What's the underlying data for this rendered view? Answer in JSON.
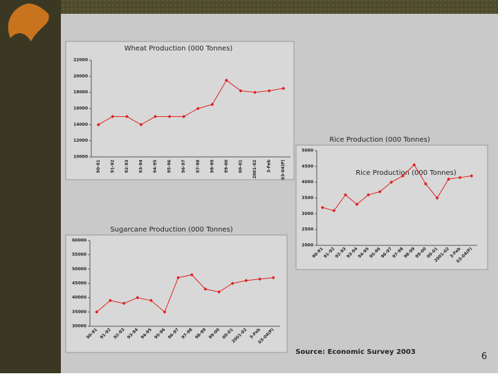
{
  "chart_data": [
    {
      "type": "line",
      "title": "Wheat Production (000 Tonnes)",
      "categories": [
        "90-91",
        "91-92",
        "92-93",
        "93-94",
        "94-95",
        "95-96",
        "96-97",
        "97-98",
        "98-99",
        "99-00",
        "00-01",
        "2001-02",
        "3-Feb",
        "03-04(P)"
      ],
      "series": [
        {
          "color": "#e02020",
          "values": [
            14000,
            15000,
            15000,
            14000,
            15000,
            15000,
            15000,
            16000,
            16500,
            19500,
            18200,
            18000,
            18200,
            18500
          ]
        }
      ],
      "ylim": [
        10000,
        22000
      ],
      "yticks": [
        10000,
        12000,
        14000,
        16000,
        18000,
        20000,
        22000
      ]
    },
    {
      "type": "line",
      "title": "Rice Production (000 Tonnes)",
      "inner_title": "Rice Production (000 Tonnes)",
      "categories": [
        "90-91",
        "91-92",
        "92-93",
        "93-94",
        "94-95",
        "95-96",
        "96-97",
        "97-98",
        "98-99",
        "99-00",
        "00-01",
        "2001-02",
        "3-Feb",
        "03-04(P)"
      ],
      "series": [
        {
          "color": "#e02020",
          "values": [
            3200,
            3100,
            3600,
            3300,
            3600,
            3700,
            4000,
            4200,
            4550,
            3950,
            3500,
            4100,
            4150,
            4200
          ]
        }
      ],
      "ylim": [
        2000,
        5000
      ],
      "yticks": [
        2000,
        2500,
        3000,
        3500,
        4000,
        4500,
        5000
      ]
    },
    {
      "type": "line",
      "title": "Sugarcane Production (000 Tonnes)",
      "categories": [
        "90-91",
        "91-92",
        "92-93",
        "93-94",
        "94-95",
        "95-96",
        "96-97",
        "97-98",
        "98-99",
        "99-00",
        "00-01",
        "2001-02",
        "3-Feb",
        "03-04(P)"
      ],
      "series": [
        {
          "color": "#e02020",
          "values": [
            35000,
            39000,
            38000,
            40000,
            39000,
            35000,
            47000,
            48000,
            43000,
            42000,
            45000,
            46000,
            46500,
            47000
          ]
        }
      ],
      "ylim": [
        30000,
        60000
      ],
      "yticks": [
        30000,
        35000,
        40000,
        45000,
        50000,
        55000,
        60000
      ]
    }
  ],
  "source": "Source: Economic Survey 2003",
  "page_number": "6"
}
